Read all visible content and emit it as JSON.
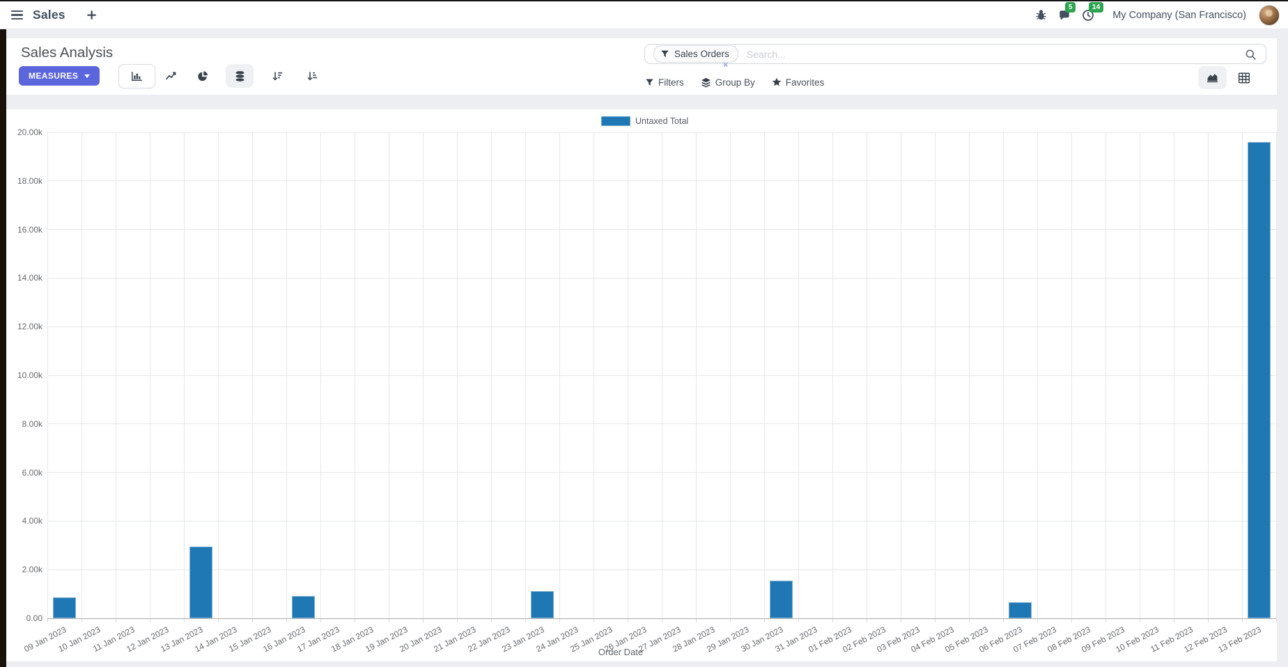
{
  "navbar": {
    "brand": "Sales",
    "messages_badge": "5",
    "activities_badge": "14",
    "company": "My Company (San Francisco)"
  },
  "control_panel": {
    "title": "Sales Analysis",
    "measures_label": "MEASURES",
    "search": {
      "facet_label": "Sales Orders",
      "placeholder": "Search...",
      "remove_label": "×"
    },
    "filters_label": "Filters",
    "group_by_label": "Group By",
    "favorites_label": "Favorites"
  },
  "colors": {
    "accent": "#5b66dd",
    "bar": "#1f77b4",
    "bar_border": "#7fb0d5",
    "badge_green": "#2ca44e"
  },
  "chart_data": {
    "type": "bar",
    "title": "",
    "xlabel": "Order Date",
    "ylabel": "",
    "ylim": [
      0,
      20000
    ],
    "ytick_step": 2000,
    "ytick_labels": [
      "0.00",
      "2.00k",
      "4.00k",
      "6.00k",
      "8.00k",
      "10.00k",
      "12.00k",
      "14.00k",
      "16.00k",
      "18.00k",
      "20.00k"
    ],
    "grid": true,
    "legend_position": "top",
    "categories": [
      "09 Jan 2023",
      "10 Jan 2023",
      "11 Jan 2023",
      "12 Jan 2023",
      "13 Jan 2023",
      "14 Jan 2023",
      "15 Jan 2023",
      "16 Jan 2023",
      "17 Jan 2023",
      "18 Jan 2023",
      "19 Jan 2023",
      "20 Jan 2023",
      "21 Jan 2023",
      "22 Jan 2023",
      "23 Jan 2023",
      "24 Jan 2023",
      "25 Jan 2023",
      "26 Jan 2023",
      "27 Jan 2023",
      "28 Jan 2023",
      "29 Jan 2023",
      "30 Jan 2023",
      "31 Jan 2023",
      "01 Feb 2023",
      "02 Feb 2023",
      "03 Feb 2023",
      "04 Feb 2023",
      "05 Feb 2023",
      "06 Feb 2023",
      "07 Feb 2023",
      "08 Feb 2023",
      "09 Feb 2023",
      "10 Feb 2023",
      "11 Feb 2023",
      "12 Feb 2023",
      "13 Feb 2023"
    ],
    "series": [
      {
        "name": "Untaxed Total",
        "color": "#1f77b4",
        "values": [
          860,
          0,
          0,
          0,
          2950,
          0,
          0,
          930,
          0,
          0,
          0,
          0,
          0,
          0,
          1120,
          0,
          0,
          0,
          0,
          0,
          0,
          1550,
          0,
          0,
          0,
          0,
          0,
          0,
          660,
          0,
          0,
          0,
          0,
          0,
          0,
          19600
        ]
      }
    ]
  }
}
